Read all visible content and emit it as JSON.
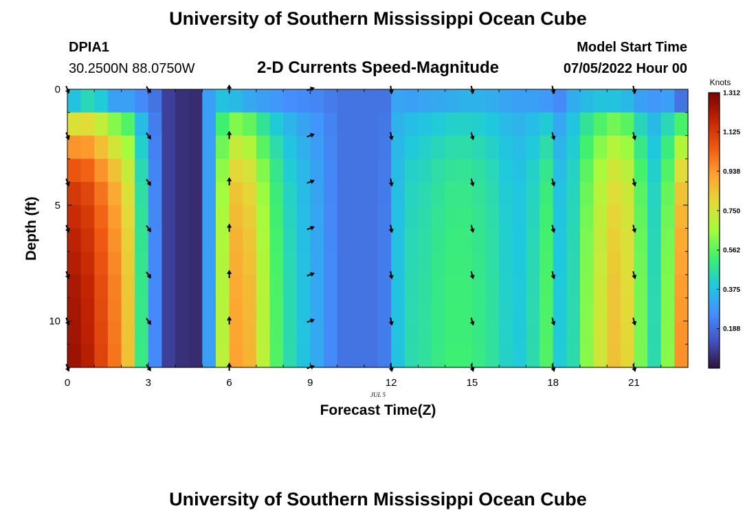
{
  "page": {
    "title_top": "University of Southern Mississippi Ocean Cube",
    "title_bottom": "University of Southern Mississippi Ocean Cube",
    "station_id": "DPIA1",
    "station_coords": "30.2500N  88.0750W",
    "subtitle": "2-D Currents Speed-Magnitude",
    "model_start_label": "Model Start Time",
    "model_start_value": "07/05/2022 Hour 00"
  },
  "chart_data": {
    "type": "heatmap",
    "title": "2-D Currents Speed-Magnitude",
    "xlabel": "Forecast Time(Z)",
    "ylabel": "Depth (ft)",
    "date_label": "JUL 5",
    "xlim": [
      0,
      23
    ],
    "ylim": [
      0,
      12
    ],
    "x_ticks": [
      0,
      3,
      6,
      9,
      12,
      15,
      18,
      21
    ],
    "x_tick_labels": [
      "0",
      "3",
      "6",
      "9",
      "12",
      "15",
      "18",
      "21"
    ],
    "y_ticks": [
      0,
      5,
      10
    ],
    "y_tick_labels": [
      "0",
      "5",
      "10"
    ],
    "hours": [
      0,
      0.5,
      1,
      1.5,
      2,
      2.5,
      3,
      3.5,
      4,
      4.5,
      5,
      5.5,
      6,
      6.5,
      7,
      7.5,
      8,
      8.5,
      9,
      9.5,
      10,
      10.5,
      11,
      11.5,
      12,
      12.5,
      13,
      13.5,
      14,
      14.5,
      15,
      15.5,
      16,
      16.5,
      17,
      17.5,
      18,
      18.5,
      19,
      19.5,
      20,
      20.5,
      21,
      21.5,
      22,
      22.5
    ],
    "depths_ft": [
      0,
      1,
      2,
      3,
      4,
      5,
      6,
      7,
      8,
      9,
      10,
      11
    ],
    "surface_speed_knots": [
      0.38,
      0.44,
      0.4,
      0.3,
      0.3,
      0.25,
      0.2,
      0.09,
      0.06,
      0.05,
      0.3,
      0.38,
      0.36,
      0.32,
      0.3,
      0.28,
      0.26,
      0.25,
      0.24,
      0.22,
      0.2,
      0.2,
      0.2,
      0.2,
      0.31,
      0.3,
      0.31,
      0.32,
      0.33,
      0.34,
      0.34,
      0.33,
      0.31,
      0.3,
      0.3,
      0.28,
      0.25,
      0.33,
      0.36,
      0.38,
      0.38,
      0.36,
      0.3,
      0.28,
      0.3,
      0.2
    ],
    "bottom_speed_knots": [
      1.25,
      1.2,
      1.1,
      1.0,
      0.85,
      0.5,
      0.25,
      0.09,
      0.06,
      0.05,
      0.3,
      0.7,
      0.92,
      0.88,
      0.7,
      0.55,
      0.45,
      0.38,
      0.32,
      0.25,
      0.2,
      0.2,
      0.2,
      0.22,
      0.38,
      0.45,
      0.47,
      0.5,
      0.52,
      0.52,
      0.5,
      0.47,
      0.42,
      0.4,
      0.45,
      0.55,
      0.4,
      0.45,
      0.62,
      0.75,
      0.85,
      0.8,
      0.6,
      0.45,
      0.62,
      0.95
    ],
    "depth_profile_shape": [
      0,
      0.45,
      0.65,
      0.78,
      0.86,
      0.9,
      0.93,
      0.95,
      0.97,
      0.98,
      0.99,
      1.0
    ],
    "arrow_hours": [
      0,
      3,
      6,
      9,
      12,
      15,
      18,
      21
    ],
    "arrow_depths_ft": [
      0,
      2,
      4,
      6,
      8,
      10,
      12
    ],
    "arrow_directions_deg": [
      160,
      145,
      0,
      70,
      170,
      165,
      165,
      165
    ],
    "colorbar": {
      "label": "Knots",
      "min": 0,
      "max": 1.312,
      "ticks": [
        1.312,
        1.125,
        0.938,
        0.75,
        0.562,
        0.375,
        0.188
      ],
      "tick_labels": [
        "1.312",
        "1.125",
        "0.938",
        "0.750",
        "0.562",
        "0.375",
        "0.188"
      ],
      "colors": [
        "#30123b",
        "#4454c4",
        "#4490fe",
        "#1fc9dd",
        "#3ef06f",
        "#a4fc3c",
        "#e2dc38",
        "#fea331",
        "#ef5911",
        "#c22403",
        "#7a0403"
      ]
    }
  }
}
